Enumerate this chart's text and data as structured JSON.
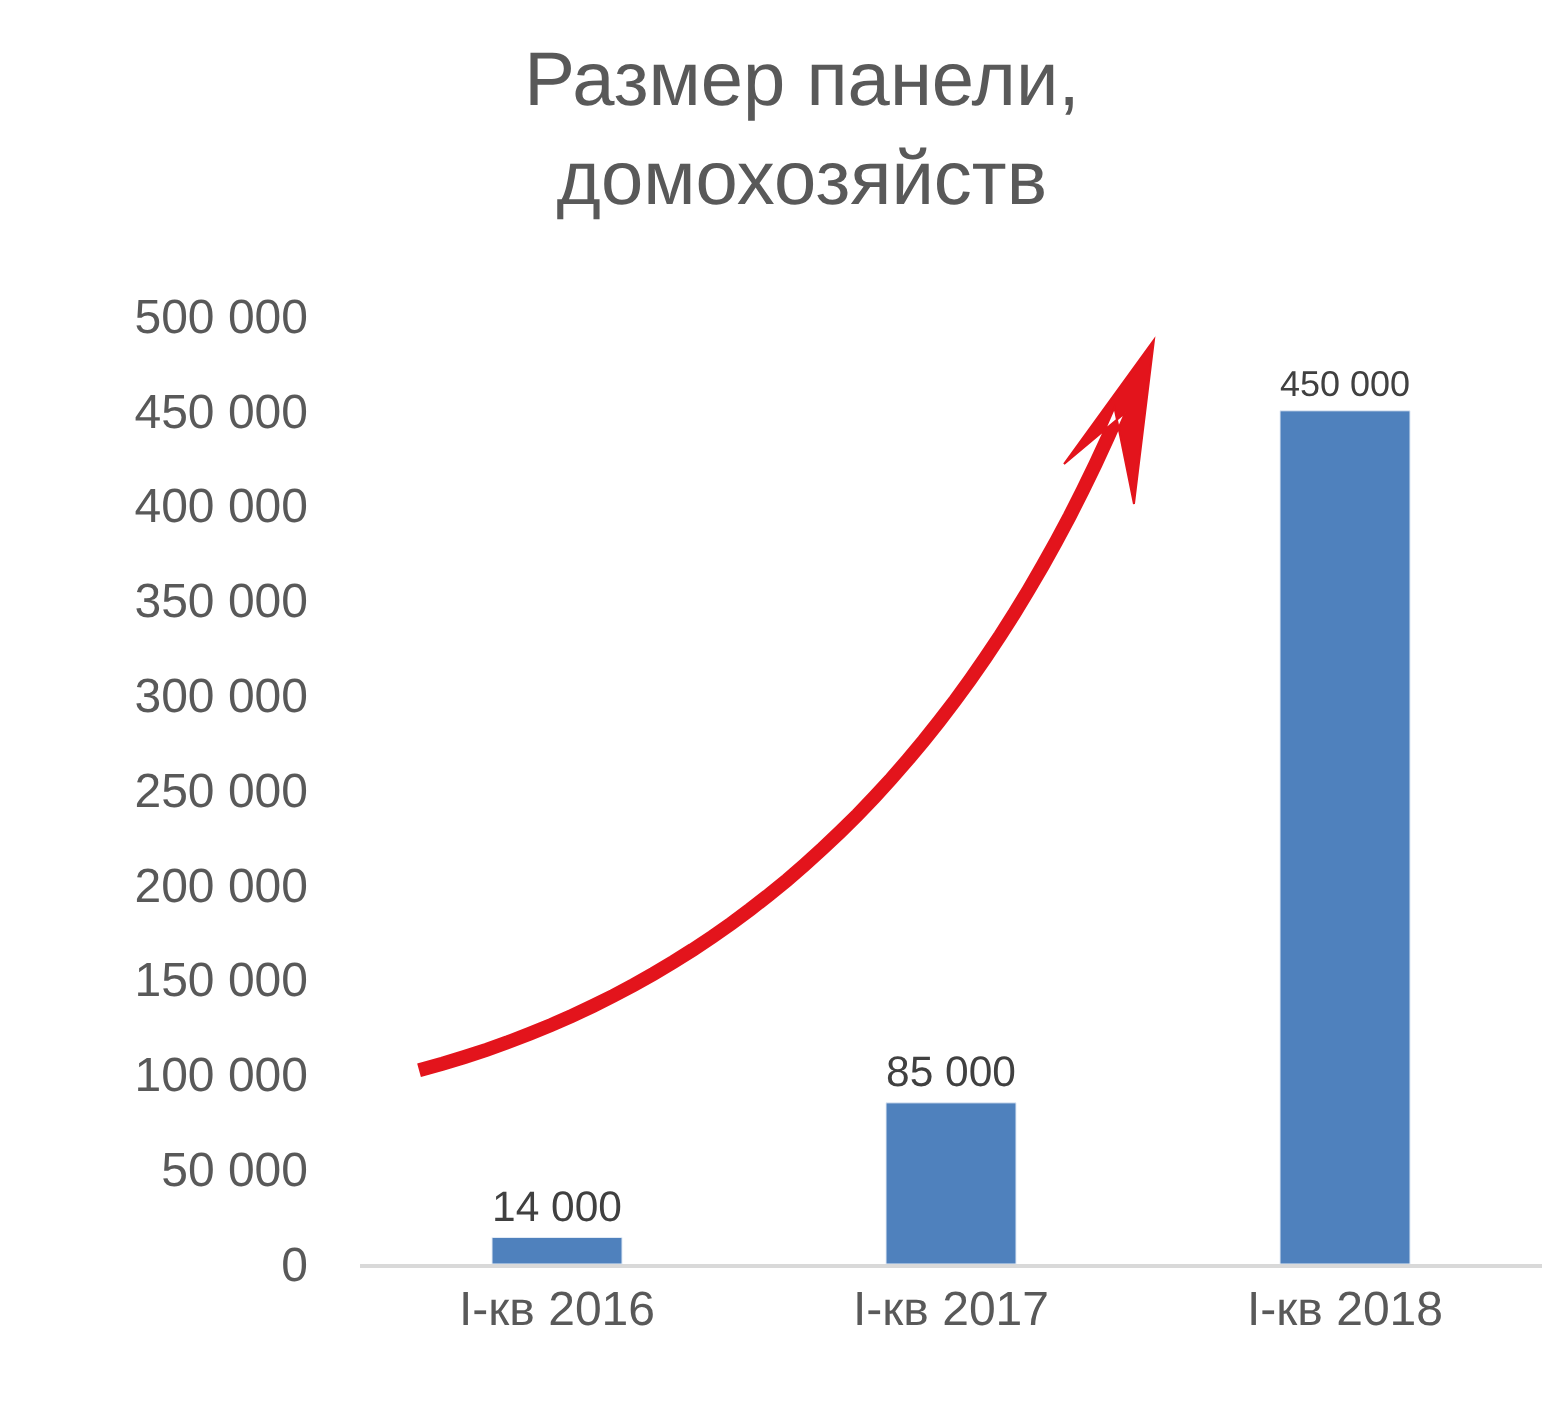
{
  "chart_data": {
    "type": "bar",
    "title": "Размер панели,\nдомохозяйств",
    "categories": [
      "I-кв 2016",
      "I-кв 2017",
      "I-кв 2018"
    ],
    "values": [
      14000,
      85000,
      450000
    ],
    "color": "#4f81bd",
    "value_labels": [
      "14 000",
      "85 000",
      "450 000"
    ],
    "ylim": [
      0,
      500000
    ],
    "yticks": [
      {
        "value": 0,
        "label": "0"
      },
      {
        "value": 50000,
        "label": "50 000"
      },
      {
        "value": 100000,
        "label": "100 000"
      },
      {
        "value": 150000,
        "label": "150 000"
      },
      {
        "value": 200000,
        "label": "200 000"
      },
      {
        "value": 250000,
        "label": "250 000"
      },
      {
        "value": 300000,
        "label": "300 000"
      },
      {
        "value": 350000,
        "label": "350 000"
      },
      {
        "value": 400000,
        "label": "400 000"
      },
      {
        "value": 450000,
        "label": "450 000"
      },
      {
        "value": 500000,
        "label": "500 000"
      }
    ],
    "legend": false
  }
}
